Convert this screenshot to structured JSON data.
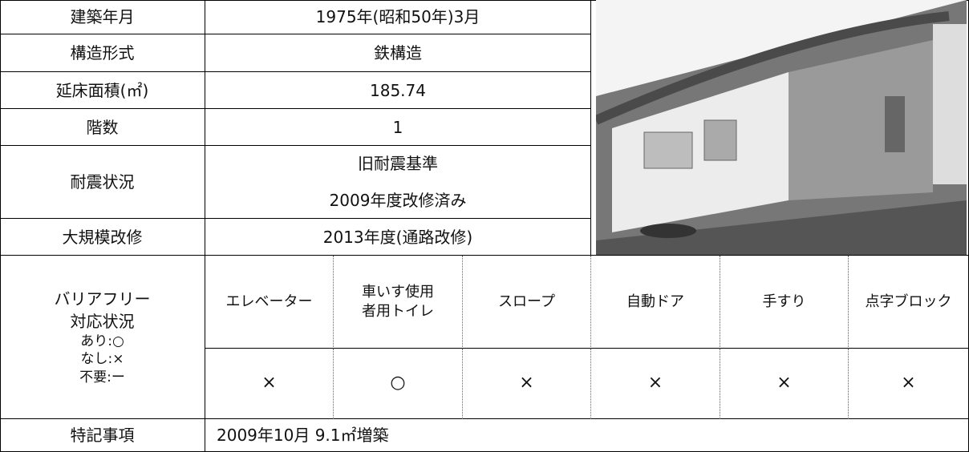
{
  "table": {
    "rows": [
      {
        "label": "建築年月",
        "value": "1975年(昭和50年)3月"
      },
      {
        "label": "構造形式",
        "value": "鉄構造"
      },
      {
        "label": "延床面積(㎡)",
        "value": "185.74"
      },
      {
        "label": "階数",
        "value": "1"
      },
      {
        "label": "耐震状況",
        "value": [
          "旧耐震基準",
          "2009年度改修済み"
        ]
      },
      {
        "label": "大規模改修",
        "value": "2013年度(通路改修)"
      }
    ],
    "barrier_free": {
      "label": [
        "バリアフリー",
        "対応状況"
      ],
      "legend": [
        "あり:○",
        "なし:×",
        "不要:ー"
      ],
      "items": [
        [
          "エレベーター"
        ],
        [
          "車いす使用",
          "者用トイレ"
        ],
        [
          "スロープ"
        ],
        [
          "自動ドア"
        ],
        [
          "手すり"
        ],
        [
          "点字ブロック"
        ]
      ],
      "status": [
        "×",
        "○",
        "×",
        "×",
        "×",
        "×"
      ]
    },
    "notes": {
      "label": "特記事項",
      "value": "2009年10月  9.1㎡増築"
    }
  }
}
